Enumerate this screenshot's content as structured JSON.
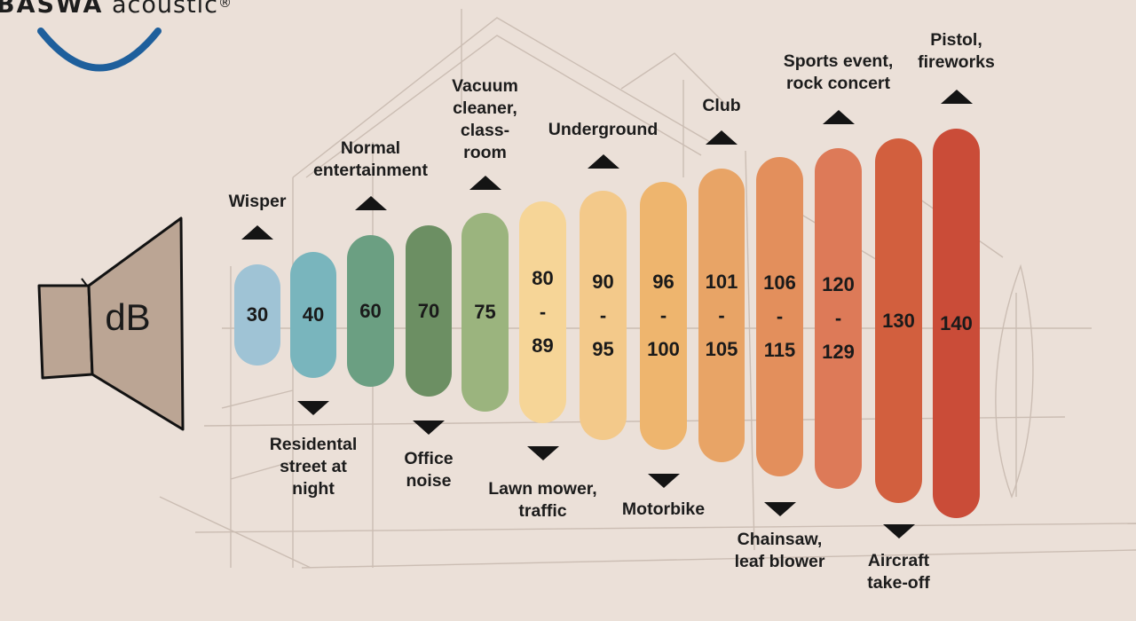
{
  "brand": {
    "name": "BASWA",
    "suffix": "acoustic",
    "registered": "®",
    "arc_color": "#1e5f9c"
  },
  "speaker": {
    "label": "dB",
    "fill": "#bba594",
    "stroke": "#121212"
  },
  "levels": [
    {
      "value": "30",
      "color": "#9fc3d5",
      "label": "Wisper",
      "label_side": "top"
    },
    {
      "value": "40",
      "color": "#79b5bd",
      "label": "Residental\nstreet at\nnight",
      "label_side": "bottom"
    },
    {
      "value": "60",
      "color": "#6b9f82",
      "label": "Normal\nentertainment",
      "label_side": "top"
    },
    {
      "value": "70",
      "color": "#6c8f63",
      "label": "Office\nnoise",
      "label_side": "bottom"
    },
    {
      "value": "75",
      "color": "#9bb47e",
      "label": "Vacuum\ncleaner,\nclass-\nroom",
      "label_side": "top"
    },
    {
      "value": "80 - 89",
      "lines": [
        "80",
        "-",
        "89"
      ],
      "color": "#f6d597",
      "label": "Lawn mower,\ntraffic",
      "label_side": "bottom"
    },
    {
      "value": "90 - 95",
      "lines": [
        "90",
        "-",
        "95"
      ],
      "color": "#f3c98a",
      "label": "Underground",
      "label_side": "top"
    },
    {
      "value": "96 - 100",
      "lines": [
        "96",
        "-",
        "100"
      ],
      "color": "#eeb56e",
      "label": "Motorbike",
      "label_side": "bottom"
    },
    {
      "value": "101 - 105",
      "lines": [
        "101",
        "-",
        "105"
      ],
      "color": "#e8a466",
      "label": "Club",
      "label_side": "top"
    },
    {
      "value": "106 - 115",
      "lines": [
        "106",
        "-",
        "115"
      ],
      "color": "#e38f5c",
      "label": "Chainsaw,\nleaf blower",
      "label_side": "bottom"
    },
    {
      "value": "120 - 129",
      "lines": [
        "120",
        "-",
        "129"
      ],
      "color": "#dd7a58",
      "label": "Sports event,\nrock concert",
      "label_side": "top"
    },
    {
      "value": "130",
      "color": "#d25f3e",
      "label": "Aircraft\ntake-off",
      "label_side": "bottom"
    },
    {
      "value": "140",
      "color": "#ca4c38",
      "label": "Pistol,\nfireworks",
      "label_side": "top"
    }
  ]
}
